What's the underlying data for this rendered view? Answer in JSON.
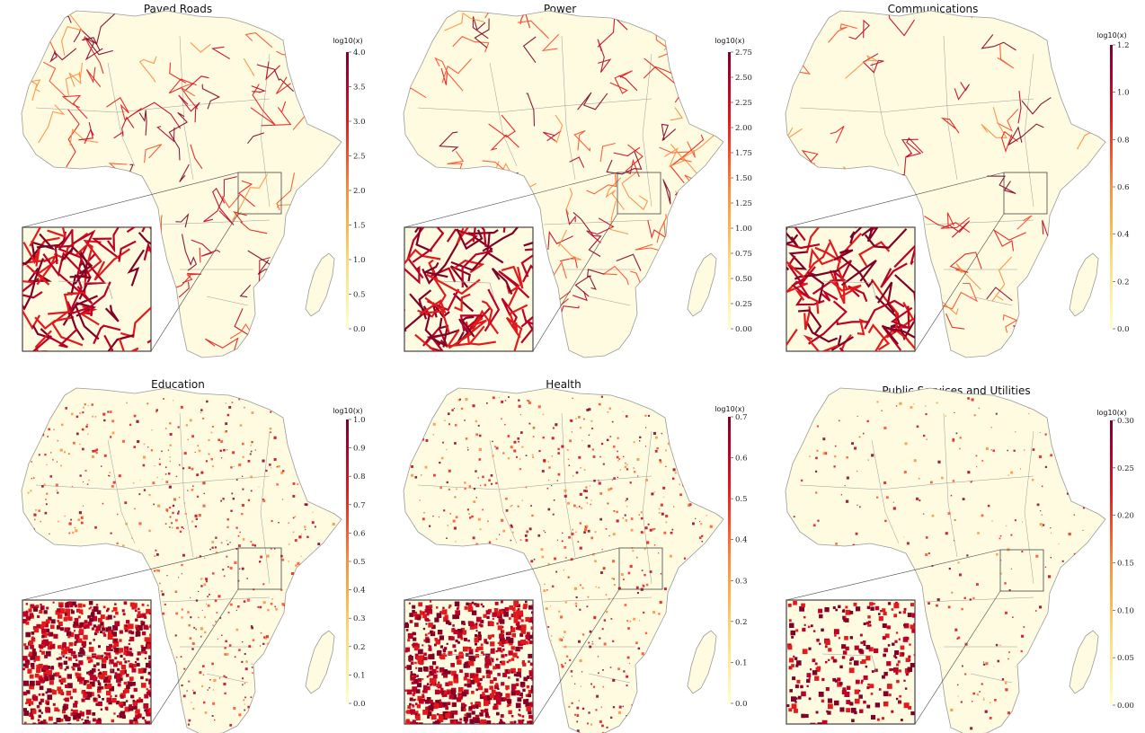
{
  "figure": {
    "colormap": {
      "name": "YlOrRd",
      "stops": [
        "#ffffcc",
        "#ffeda0",
        "#fed976",
        "#feb24c",
        "#fd8d3c",
        "#fc4e2a",
        "#e31a1c",
        "#bd0026",
        "#800026"
      ]
    },
    "colors": {
      "land": "#fffbe0",
      "borders": "#9a9a9a",
      "inset_frame": "#444444"
    },
    "panels": [
      {
        "id": "paved-roads",
        "title": "Paved Roads",
        "colorbar_label": "log10(x)",
        "ticks": [
          "0.0",
          "0.5",
          "1.0",
          "1.5",
          "2.0",
          "2.5",
          "3.0",
          "3.5",
          "4.0"
        ],
        "vmax": 4.0,
        "density": "network-heavy"
      },
      {
        "id": "power",
        "title": "Power",
        "colorbar_label": "log10(x)",
        "ticks": [
          "0.00",
          "0.25",
          "0.50",
          "0.75",
          "1.00",
          "1.25",
          "1.50",
          "1.75",
          "2.00",
          "2.25",
          "2.50",
          "2.75"
        ],
        "vmax": 2.75,
        "density": "network-heavy"
      },
      {
        "id": "communications",
        "title": "Communications",
        "colorbar_label": "log10(x)",
        "ticks": [
          "0.0",
          "0.2",
          "0.4",
          "0.6",
          "0.8",
          "1.0",
          "1.2"
        ],
        "vmax": 1.2,
        "density": "network-medium"
      },
      {
        "id": "education",
        "title": "Education",
        "colorbar_label": "log10(x)",
        "ticks": [
          "0.0",
          "0.1",
          "0.2",
          "0.3",
          "0.4",
          "0.5",
          "0.6",
          "0.7",
          "0.8",
          "0.9",
          "1.0"
        ],
        "vmax": 1.0,
        "density": "speckle-heavy"
      },
      {
        "id": "health",
        "title": "Health",
        "colorbar_label": "log10(x)",
        "ticks": [
          "0.0",
          "0.1",
          "0.2",
          "0.3",
          "0.4",
          "0.5",
          "0.6",
          "0.7"
        ],
        "vmax": 0.7,
        "density": "speckle-heavy"
      },
      {
        "id": "public-services",
        "title": "Public Services and Utilities",
        "colorbar_label": "log10(x)",
        "ticks": [
          "0.00",
          "0.05",
          "0.10",
          "0.15",
          "0.20",
          "0.25",
          "0.30"
        ],
        "vmax": 0.3,
        "density": "speckle-light"
      }
    ]
  }
}
